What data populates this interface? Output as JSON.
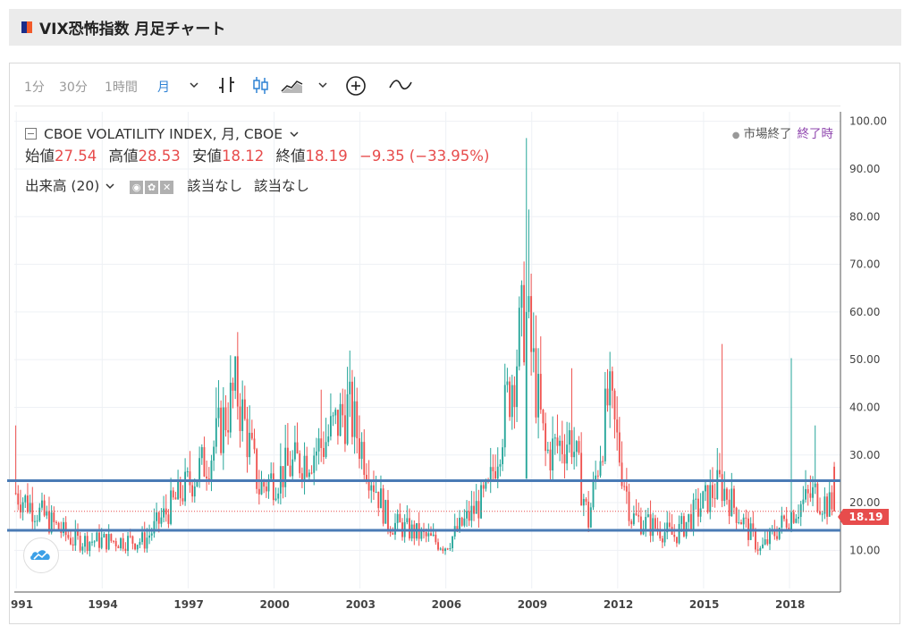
{
  "header": {
    "title": "VIX恐怖指数 月足チャート"
  },
  "toolbar": {
    "intervals": [
      {
        "label": "1分",
        "active": false
      },
      {
        "label": "30分",
        "active": false
      },
      {
        "label": "1時間",
        "active": false
      },
      {
        "label": "月",
        "active": true
      }
    ]
  },
  "legend": {
    "symbol": "CBOE VOLATILITY INDEX, 月, CBOE",
    "open_label": "始値",
    "open": "27.54",
    "high_label": "高値",
    "high": "28.53",
    "low_label": "安値",
    "low": "18.12",
    "close_label": "終値",
    "close": "18.19",
    "change": "−9.35 (−33.95%)"
  },
  "volume": {
    "label": "出来高 (20)",
    "value1": "該当なし",
    "value2": "該当なし"
  },
  "status": {
    "market": "市場終了",
    "extended": "終了時"
  },
  "price_tag": "18.19",
  "colors": {
    "up": "#26a69a",
    "down": "#ef5350",
    "support_line": "#4a7bb5"
  },
  "chart_data": {
    "type": "candlestick",
    "title": "CBOE VOLATILITY INDEX, 月, CBOE",
    "y_ticks": [
      "100.00",
      "90.00",
      "80.00",
      "70.00",
      "60.00",
      "50.00",
      "40.00",
      "30.00",
      "20.00",
      "10.00"
    ],
    "x_ticks": [
      "991",
      "1994",
      "1997",
      "2000",
      "2003",
      "2006",
      "2009",
      "2012",
      "2015",
      "2018"
    ],
    "ylim": [
      2,
      102
    ],
    "xlim": [
      1990.95,
      2019.8
    ],
    "last_close": 18.19,
    "horizontal_lines": [
      24.6,
      14.2
    ],
    "grid": true,
    "key_points": [
      {
        "t": 1991.0,
        "v": 22
      },
      {
        "t": 1993.0,
        "v": 12
      },
      {
        "t": 1995.5,
        "v": 12
      },
      {
        "t": 1997.8,
        "v": 30
      },
      {
        "t": 1998.7,
        "v": 44
      },
      {
        "t": 1999.5,
        "v": 23
      },
      {
        "t": 2001.7,
        "v": 32
      },
      {
        "t": 2002.6,
        "v": 40
      },
      {
        "t": 2004.0,
        "v": 16
      },
      {
        "t": 2006.0,
        "v": 11
      },
      {
        "t": 2007.5,
        "v": 22
      },
      {
        "t": 2008.8,
        "v": 60
      },
      {
        "t": 2009.5,
        "v": 30
      },
      {
        "t": 2010.4,
        "v": 34
      },
      {
        "t": 2011.0,
        "v": 16
      },
      {
        "t": 2011.7,
        "v": 42
      },
      {
        "t": 2012.5,
        "v": 17
      },
      {
        "t": 2014.0,
        "v": 13
      },
      {
        "t": 2015.6,
        "v": 24
      },
      {
        "t": 2017.0,
        "v": 10
      },
      {
        "t": 2018.1,
        "v": 18
      },
      {
        "t": 2018.9,
        "v": 22
      },
      {
        "t": 2019.6,
        "v": 18.19
      }
    ],
    "spikes": [
      {
        "t": 2008.83,
        "high": 96.5
      },
      {
        "t": 2008.92,
        "high": 81.5
      },
      {
        "t": 2015.65,
        "high": 53.3
      },
      {
        "t": 2018.1,
        "high": 50.3
      },
      {
        "t": 1998.7,
        "high": 49.5
      },
      {
        "t": 2002.6,
        "high": 48.5
      },
      {
        "t": 2010.4,
        "high": 48.2
      },
      {
        "t": 2011.67,
        "high": 48.0
      },
      {
        "t": 2001.7,
        "high": 43.7
      },
      {
        "t": 1991.0,
        "high": 36.2
      },
      {
        "t": 2018.95,
        "high": 36.2
      }
    ]
  }
}
